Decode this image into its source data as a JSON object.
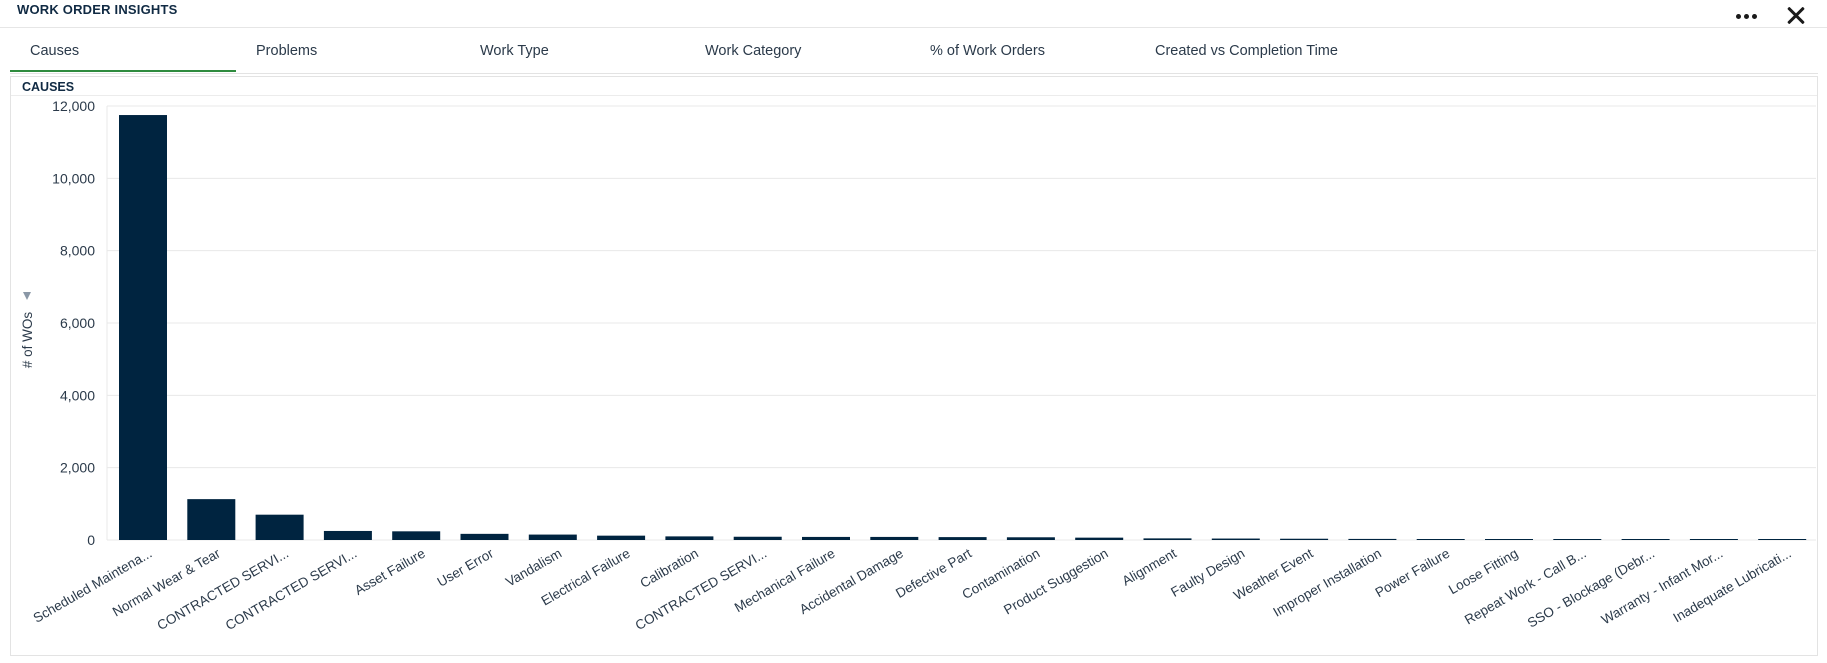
{
  "header": {
    "title": "WORK ORDER INSIGHTS"
  },
  "tabs": [
    {
      "label": "Causes",
      "active": true
    },
    {
      "label": "Problems",
      "active": false
    },
    {
      "label": "Work Type",
      "active": false
    },
    {
      "label": "Work Category",
      "active": false
    },
    {
      "label": "% of Work Orders",
      "active": false
    },
    {
      "label": "Created vs Completion Time",
      "active": false
    }
  ],
  "panel": {
    "title": "CAUSES"
  },
  "colors": {
    "bar": "#002440",
    "active_tab": "#2e8b3e",
    "grid": "#e8e8e8"
  },
  "chart_data": {
    "type": "bar",
    "ylabel": "# of WOs",
    "ylim": [
      0,
      12000
    ],
    "yticks": [
      "0",
      "2,000",
      "4,000",
      "6,000",
      "8,000",
      "10,000",
      "12,000"
    ],
    "ytick_values": [
      0,
      2000,
      4000,
      6000,
      8000,
      10000,
      12000
    ],
    "grid": true,
    "categories": [
      "Scheduled Maintena...",
      "Normal Wear & Tear",
      "CONTRACTED SERVI...",
      "CONTRACTED SERVI...",
      "Asset Failure",
      "User Error",
      "Vandalism",
      "Electrical Failure",
      "Calibration",
      "CONTRACTED SERVI...",
      "Mechanical Failure",
      "Accidental Damage",
      "Defective Part",
      "Contamination",
      "Product Suggestion",
      "Alignment",
      "Faulty Design",
      "Weather Event",
      "Improper Installation",
      "Power Failure",
      "Loose Fitting",
      "Repeat Work - Call B...",
      "SSO - Blockage (Debr...",
      "Warranty - Infant Mor...",
      "Inadequate Lubricati..."
    ],
    "values": [
      11750,
      1130,
      700,
      250,
      240,
      170,
      150,
      120,
      100,
      90,
      85,
      85,
      80,
      75,
      65,
      45,
      40,
      35,
      30,
      25,
      20,
      5,
      3,
      2,
      1
    ]
  }
}
